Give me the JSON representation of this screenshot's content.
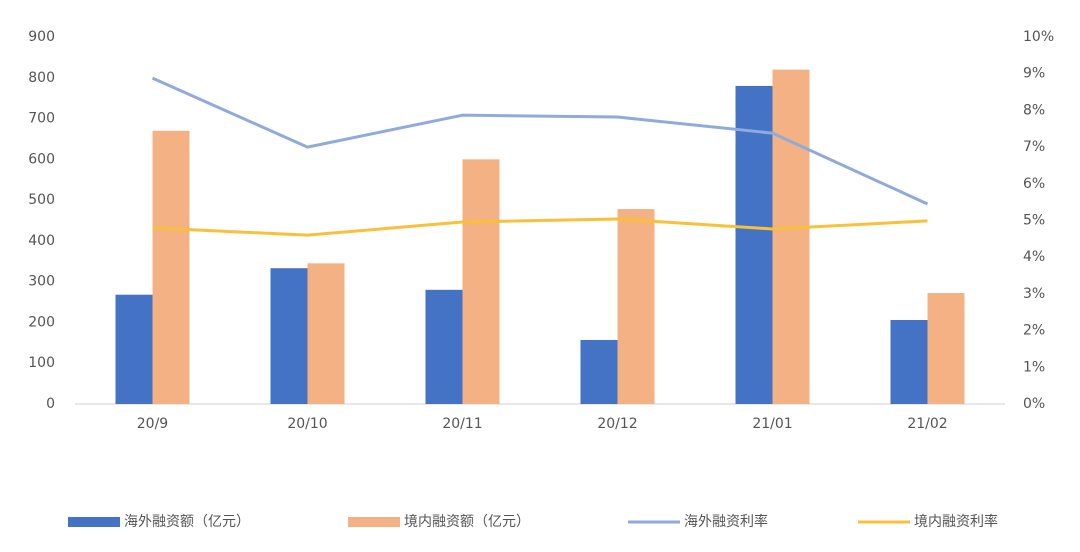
{
  "chart_data": {
    "type": "combo",
    "categories": [
      "20/9",
      "20/10",
      "20/11",
      "20/12",
      "21/01",
      "21/02"
    ],
    "series": [
      {
        "name": "海外融资额（亿元）",
        "type": "bar",
        "color": "#4472c4",
        "values": [
          268,
          333,
          280,
          157,
          780,
          206
        ]
      },
      {
        "name": "境内融资额（亿元）",
        "type": "bar",
        "color": "#f4b183",
        "values": [
          670,
          345,
          600,
          478,
          820,
          272
        ]
      },
      {
        "name": "海外融资利率",
        "type": "line",
        "axis": "y2",
        "color": "#8faadc",
        "values": [
          8.88,
          7.0,
          7.87,
          7.82,
          7.38,
          5.45
        ]
      },
      {
        "name": "境内融资利率",
        "type": "line",
        "axis": "y2",
        "color": "#f9c03a",
        "values": [
          4.8,
          4.6,
          4.96,
          5.04,
          4.77,
          4.99
        ]
      }
    ],
    "ylim": [
      0,
      900
    ],
    "yticks": [
      0,
      100,
      200,
      300,
      400,
      500,
      600,
      700,
      800,
      900
    ],
    "y2lim": [
      0,
      10
    ],
    "y2ticks": [
      {
        "value": 0,
        "label": "0%"
      },
      {
        "value": 1,
        "label": "1%"
      },
      {
        "value": 2,
        "label": "2%"
      },
      {
        "value": 3,
        "label": "3%"
      },
      {
        "value": 4,
        "label": "4%"
      },
      {
        "value": 5,
        "label": "5%"
      },
      {
        "value": 6,
        "label": "6%"
      },
      {
        "value": 7,
        "label": "7%"
      },
      {
        "value": 8,
        "label": "8%"
      },
      {
        "value": 9,
        "label": "9%"
      },
      {
        "value": 10,
        "label": "10%"
      }
    ],
    "grid": false,
    "legend": "bottom"
  }
}
